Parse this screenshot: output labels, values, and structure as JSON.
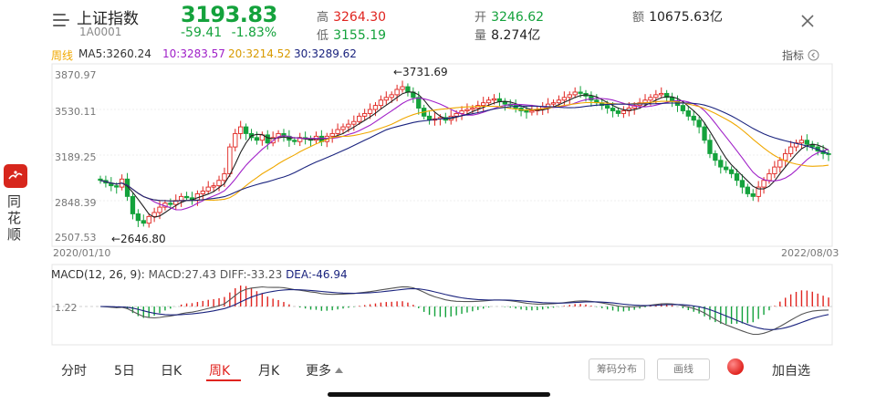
{
  "header": {
    "title": "上证指数",
    "code": "1A0001",
    "price": "3193.83",
    "change": "-59.41",
    "change_pct": "-1.83%",
    "high_label": "高",
    "high": "3264.30",
    "low_label": "低",
    "low": "3155.19",
    "open_label": "开",
    "open": "3246.62",
    "volume_label": "量",
    "volume": "8.274亿",
    "amount_label": "额",
    "amount": "10675.63亿"
  },
  "legend": {
    "period": "周线",
    "ma5": "MA5:3260.24",
    "ma10": "10:3283.57",
    "ma20": "20:3214.52",
    "ma30": "30:3289.62",
    "indicator": "指标"
  },
  "kline_chart": {
    "y_labels": [
      "3870.97",
      "3530.11",
      "3189.25",
      "2848.39",
      "2507.53"
    ],
    "start_date": "2020/01/10",
    "end_date": "2022/08/03",
    "max_marker": "←3731.69",
    "min_marker": "←2646.80"
  },
  "macd": {
    "label": "MACD(12, 26, 9):",
    "macd_value": "MACD:27.43",
    "diff_value": "DIFF:-33.23",
    "dea_value": "DEA:-46.94",
    "axis_label": "1.22"
  },
  "side": {
    "logo_text": "同花顺",
    "chars": [
      "同",
      "花",
      "顺"
    ]
  },
  "tabs": [
    "分时",
    "5日",
    "日K",
    "周K",
    "月K",
    "更多"
  ],
  "active_tab": "周K",
  "buttons": {
    "chip_distribution": "筹码分布",
    "draw_line": "画线",
    "add_watchlist": "加自选"
  },
  "colors": {
    "up": "#e0241f",
    "down": "#14a23c",
    "ma5": "#222222",
    "ma10": "#a020c8",
    "ma20": "#f0a800",
    "ma30": "#1a237e"
  },
  "chart_data": {
    "type": "candlestick",
    "x_range": [
      "2020/01/10",
      "2022/08/03"
    ],
    "ylim": [
      2507.53,
      3870.97
    ],
    "close_series": [
      3000,
      2980,
      2960,
      2950,
      3010,
      2880,
      2750,
      2700,
      2680,
      2730,
      2760,
      2800,
      2830,
      2820,
      2850,
      2880,
      2870,
      2850,
      2900,
      2920,
      2950,
      2960,
      3000,
      3050,
      3250,
      3350,
      3400,
      3350,
      3320,
      3300,
      3340,
      3280,
      3320,
      3350,
      3330,
      3300,
      3290,
      3320,
      3310,
      3300,
      3330,
      3290,
      3330,
      3350,
      3380,
      3400,
      3420,
      3440,
      3480,
      3500,
      3530,
      3560,
      3600,
      3620,
      3640,
      3680,
      3700,
      3660,
      3620,
      3540,
      3480,
      3450,
      3460,
      3470,
      3450,
      3480,
      3500,
      3520,
      3530,
      3540,
      3560,
      3580,
      3600,
      3610,
      3590,
      3570,
      3560,
      3540,
      3520,
      3510,
      3520,
      3530,
      3550,
      3570,
      3580,
      3600,
      3620,
      3640,
      3660,
      3650,
      3630,
      3600,
      3580,
      3560,
      3540,
      3520,
      3500,
      3520,
      3540,
      3560,
      3580,
      3600,
      3620,
      3640,
      3650,
      3620,
      3590,
      3560,
      3520,
      3480,
      3450,
      3400,
      3300,
      3200,
      3150,
      3100,
      3080,
      3050,
      3000,
      2950,
      2900,
      2880,
      2950,
      3000,
      3050,
      3100,
      3150,
      3200,
      3250,
      3280,
      3300,
      3270,
      3250,
      3220,
      3200,
      3193.83
    ],
    "markers": {
      "max": 3731.69,
      "min": 2646.8
    },
    "ma_legend": {
      "MA5": 3260.24,
      "MA10": 3283.57,
      "MA20": 3214.52,
      "MA30": 3289.62
    }
  }
}
